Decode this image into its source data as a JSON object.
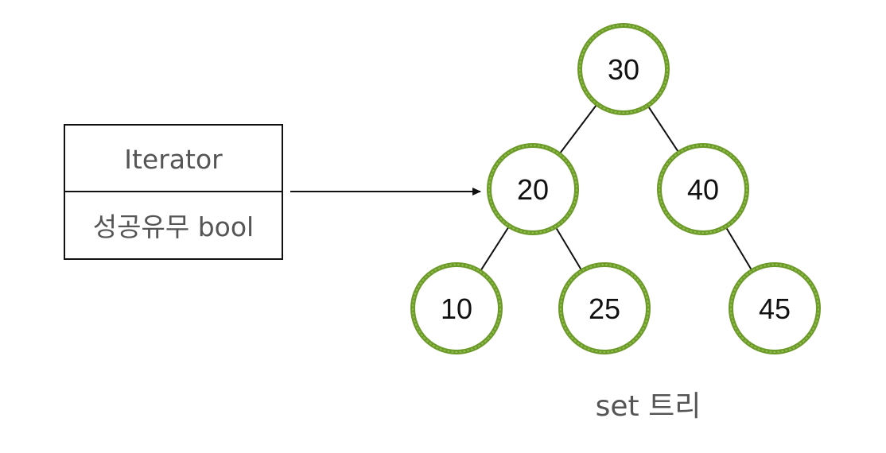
{
  "pair_box": {
    "iterator_label": "Iterator",
    "success_label": "성공유무 bool"
  },
  "tree": {
    "caption": "set 트리",
    "nodes": [
      {
        "id": "30",
        "label": "30"
      },
      {
        "id": "20",
        "label": "20"
      },
      {
        "id": "40",
        "label": "40"
      },
      {
        "id": "10",
        "label": "10"
      },
      {
        "id": "25",
        "label": "25"
      },
      {
        "id": "45",
        "label": "45"
      }
    ],
    "edges": [
      {
        "from": "30",
        "to": "20"
      },
      {
        "from": "30",
        "to": "40"
      },
      {
        "from": "20",
        "to": "10"
      },
      {
        "from": "20",
        "to": "25"
      },
      {
        "from": "40",
        "to": "45"
      }
    ],
    "pointer_target": "20"
  },
  "colors": {
    "node_ring": "#6c9a2a",
    "node_ring_light": "#8fbc45",
    "line": "#111111",
    "box_border": "#111111",
    "label_gray": "#555555"
  }
}
